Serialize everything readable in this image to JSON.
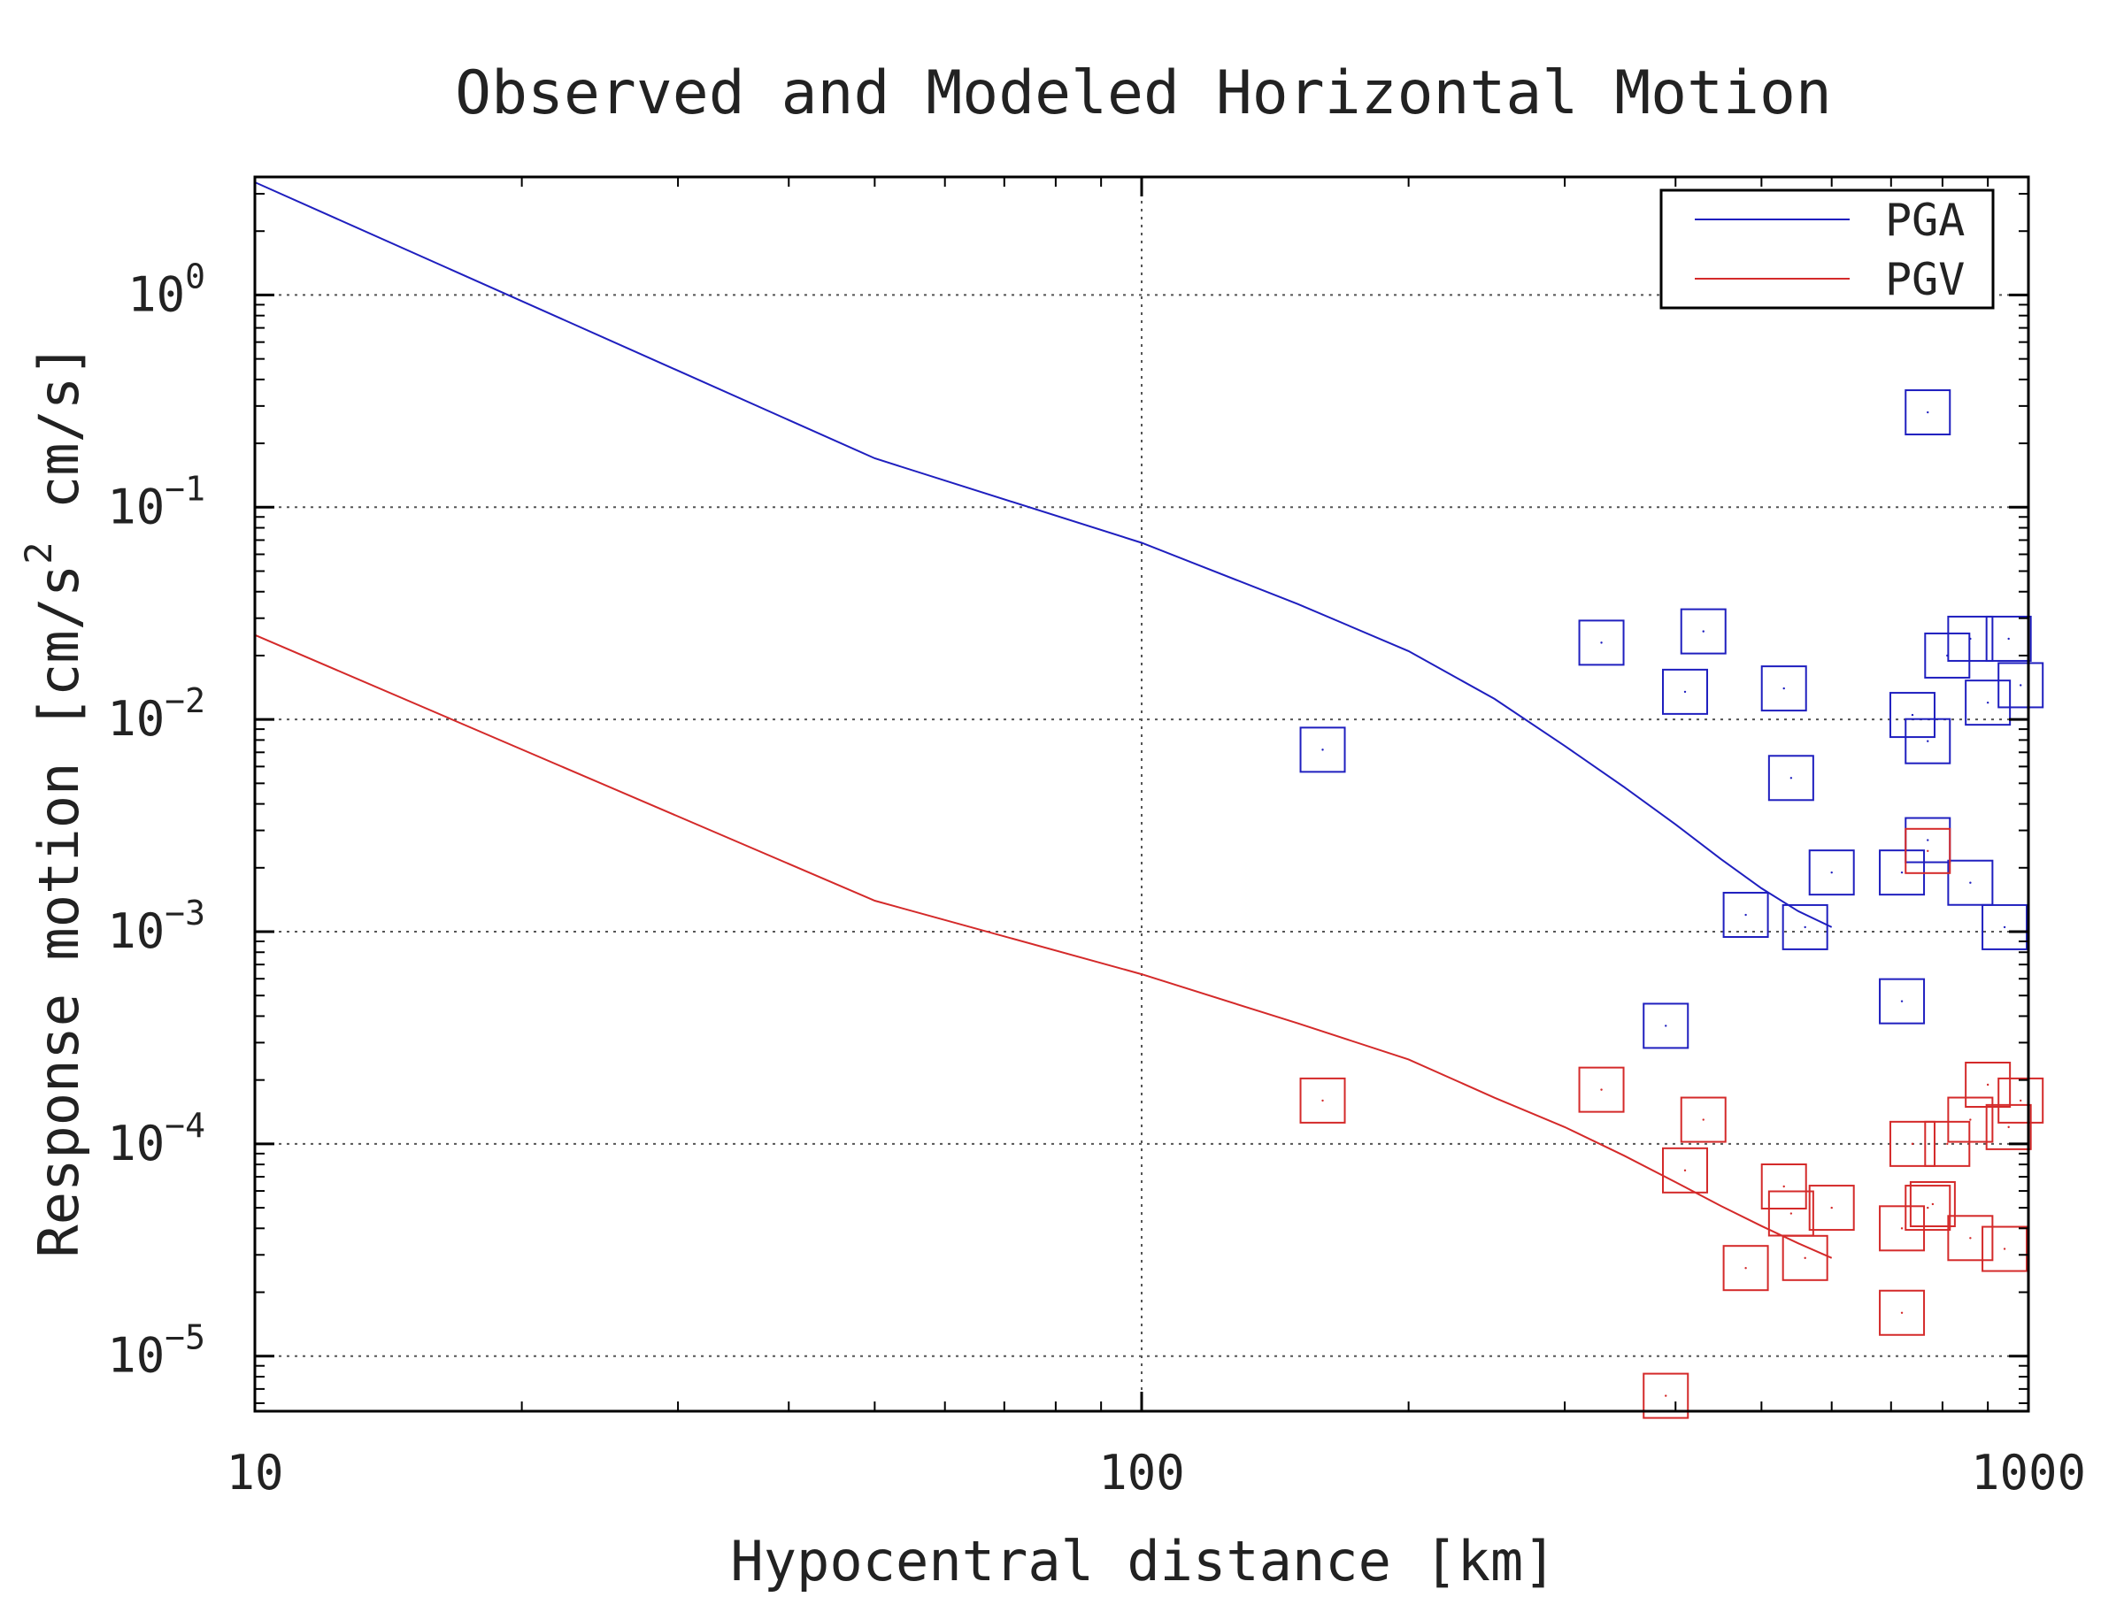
{
  "chart_data": {
    "type": "scatter",
    "title": "Observed and Modeled Horizontal Motion",
    "xlabel": "Hypocentral distance [km]",
    "ylabel_parts": {
      "pre": "Response motion [cm/s",
      "sup": "2",
      "post": " cm/s]"
    },
    "x_scale": "log",
    "y_scale": "log",
    "xlim": [
      10,
      1000
    ],
    "ylim": [
      5.5e-06,
      3.6
    ],
    "grid": true,
    "legend_position": "top-right",
    "x_ticks": [
      {
        "value": 10,
        "label": "10"
      },
      {
        "value": 100,
        "label": "100"
      },
      {
        "value": 1000,
        "label": "1000"
      }
    ],
    "y_ticks": [
      {
        "value": 1,
        "base": "10",
        "exp": "0"
      },
      {
        "value": 0.1,
        "base": "10",
        "exp": "−1"
      },
      {
        "value": 0.01,
        "base": "10",
        "exp": "−2"
      },
      {
        "value": 0.001,
        "base": "10",
        "exp": "−3"
      },
      {
        "value": 0.0001,
        "base": "10",
        "exp": "−4"
      },
      {
        "value": 1e-05,
        "base": "10",
        "exp": "−5"
      }
    ],
    "series": [
      {
        "name": "PGA",
        "color": "#1f1fbf",
        "model": [
          [
            10,
            3.4
          ],
          [
            50,
            0.17
          ],
          [
            100,
            0.068
          ],
          [
            150,
            0.035
          ],
          [
            200,
            0.021
          ],
          [
            250,
            0.0125
          ],
          [
            300,
            0.0075
          ],
          [
            350,
            0.0048
          ],
          [
            400,
            0.0032
          ],
          [
            450,
            0.0022
          ],
          [
            500,
            0.0016
          ],
          [
            550,
            0.00125
          ],
          [
            600,
            0.00105
          ]
        ],
        "observed": [
          [
            160,
            0.0072
          ],
          [
            330,
            0.023
          ],
          [
            430,
            0.026
          ],
          [
            410,
            0.0135
          ],
          [
            530,
            0.014
          ],
          [
            540,
            0.0053
          ],
          [
            480,
            0.0012
          ],
          [
            560,
            0.00105
          ],
          [
            600,
            0.0019
          ],
          [
            720,
            0.0019
          ],
          [
            740,
            0.0105
          ],
          [
            770,
            0.0079
          ],
          [
            770,
            0.0027
          ],
          [
            810,
            0.02
          ],
          [
            860,
            0.024
          ],
          [
            950,
            0.024
          ],
          [
            900,
            0.012
          ],
          [
            980,
            0.0145
          ],
          [
            860,
            0.0017
          ],
          [
            940,
            0.00105
          ],
          [
            770,
            0.28
          ],
          [
            720,
            0.00047
          ],
          [
            390,
            0.00036
          ]
        ]
      },
      {
        "name": "PGV",
        "color": "#d42a2a",
        "model": [
          [
            10,
            0.025
          ],
          [
            50,
            0.0014
          ],
          [
            100,
            0.00063
          ],
          [
            150,
            0.00037
          ],
          [
            200,
            0.00025
          ],
          [
            250,
            0.000165
          ],
          [
            300,
            0.00012
          ],
          [
            350,
            8.8e-05
          ],
          [
            400,
            6.6e-05
          ],
          [
            450,
            5.1e-05
          ],
          [
            500,
            4.1e-05
          ],
          [
            550,
            3.4e-05
          ],
          [
            600,
            2.9e-05
          ]
        ],
        "observed": [
          [
            160,
            0.00016
          ],
          [
            330,
            0.00018
          ],
          [
            430,
            0.00013
          ],
          [
            410,
            7.5e-05
          ],
          [
            530,
            6.3e-05
          ],
          [
            540,
            4.7e-05
          ],
          [
            480,
            2.6e-05
          ],
          [
            560,
            2.9e-05
          ],
          [
            600,
            5e-05
          ],
          [
            720,
            4e-05
          ],
          [
            740,
            0.0001
          ],
          [
            770,
            5e-05
          ],
          [
            770,
            0.0024
          ],
          [
            810,
            0.0001
          ],
          [
            860,
            0.00013
          ],
          [
            950,
            0.00012
          ],
          [
            900,
            0.00019
          ],
          [
            980,
            0.00016
          ],
          [
            860,
            3.6e-05
          ],
          [
            940,
            3.2e-05
          ],
          [
            780,
            5.2e-05
          ],
          [
            720,
            1.6e-05
          ],
          [
            390,
            6.5e-06
          ]
        ]
      }
    ]
  }
}
